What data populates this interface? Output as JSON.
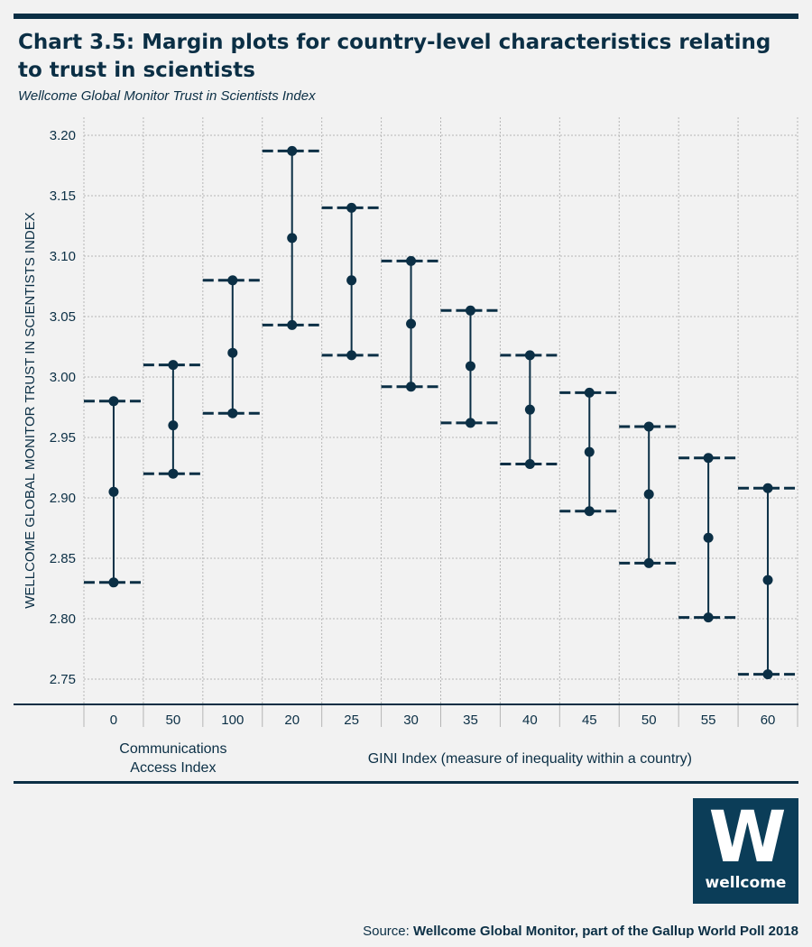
{
  "header": {
    "title": "Chart 3.5: Margin plots for country-level characteristics relating to trust in scientists",
    "subtitle": "Wellcome Global Monitor Trust in Scientists Index"
  },
  "source": {
    "prefix": "Source:",
    "text": "Wellcome Global Monitor, part of the Gallup World Poll 2018"
  },
  "logo": {
    "glyph": "W",
    "word": "wellcome"
  },
  "colors": {
    "ink": "#0b2f45",
    "grid": "#b5b5b5",
    "background": "#f2f2f2",
    "logo_bg": "#0b3d58"
  },
  "chart_data": {
    "type": "scatter",
    "subtype": "margin plot with confidence intervals",
    "ylabel": "WELLCOME GLOBAL MONITOR TRUST IN SCIENTISTS INDEX",
    "ylim": [
      2.72,
      3.22
    ],
    "yticks": [
      "2.75",
      "2.80",
      "2.85",
      "2.90",
      "2.95",
      "3.00",
      "3.05",
      "3.10",
      "3.15",
      "3.20"
    ],
    "grid": true,
    "groups": [
      {
        "label": "Communications Access Index",
        "categories": [
          "0",
          "50",
          "100"
        ],
        "estimate": [
          2.905,
          2.96,
          3.02
        ],
        "lower": [
          2.83,
          2.92,
          2.97
        ],
        "upper": [
          2.98,
          3.01,
          3.08
        ]
      },
      {
        "label": "GINI Index (measure of inequality within a country)",
        "categories": [
          "20",
          "25",
          "30",
          "35",
          "40",
          "45",
          "50",
          "55",
          "60"
        ],
        "estimate": [
          3.115,
          3.08,
          3.044,
          3.009,
          2.973,
          2.938,
          2.903,
          2.867,
          2.832
        ],
        "lower": [
          3.043,
          3.018,
          2.992,
          2.962,
          2.928,
          2.889,
          2.846,
          2.801,
          2.754
        ],
        "upper": [
          3.187,
          3.14,
          3.096,
          3.055,
          3.018,
          2.987,
          2.959,
          2.933,
          2.908
        ]
      }
    ]
  }
}
